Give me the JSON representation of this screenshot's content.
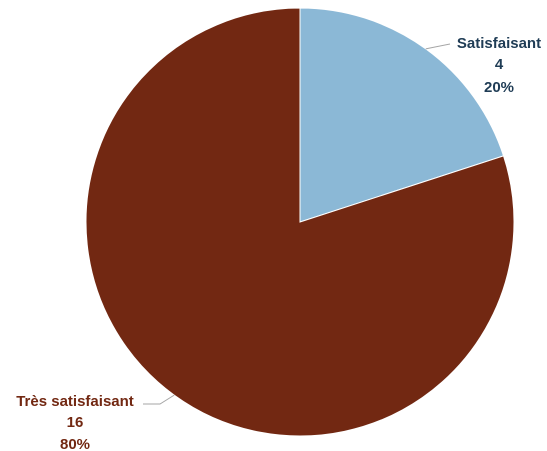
{
  "chart_data": {
    "type": "pie",
    "title": "",
    "start_angle_deg": 0,
    "direction": "clockwise",
    "slices": [
      {
        "label": "Satisfaisant",
        "value": 4,
        "percent_text": "20%",
        "color": "#8bb8d6",
        "label_color": "#1f3c55"
      },
      {
        "label": "Très satisfaisant",
        "value": 16,
        "percent_text": "80%",
        "color": "#722812",
        "label_color": "#722812"
      }
    ],
    "leader_color": "#a6a6a6",
    "legend": "none"
  }
}
